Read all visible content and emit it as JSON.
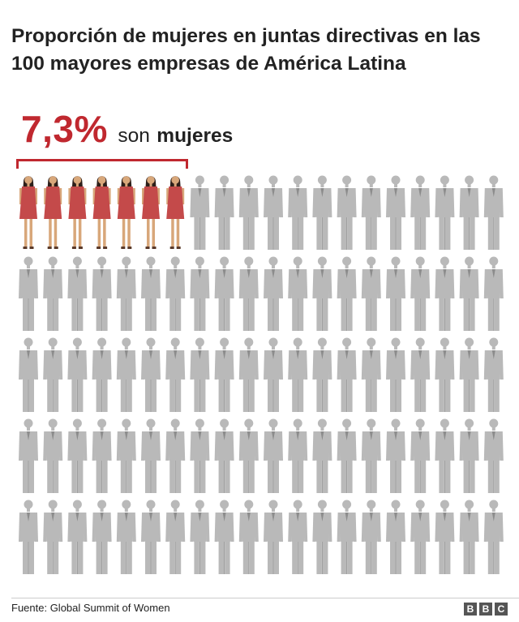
{
  "title": "Proporción de mujeres en juntas directivas en las 100 mayores empresas de América Latina",
  "headline": {
    "value": "7,3%",
    "text_regular": "son",
    "text_bold": "mujeres"
  },
  "source": "Fuente: Global Summit of Women",
  "logo": [
    "B",
    "B",
    "C"
  ],
  "colors": {
    "women_dress": "#c44a4a",
    "women_hair": "#2e1f1a",
    "women_skin": "#d8a77a",
    "men_suit": "#b9b9b9",
    "men_dark": "#8c8c8c",
    "accent": "#c0282f"
  },
  "chart_data": {
    "type": "pictogram",
    "total": 100,
    "columns": 20,
    "rows": 5,
    "categories": [
      "mujeres",
      "hombres"
    ],
    "values": [
      7,
      93
    ],
    "value_label": "7,3%"
  }
}
